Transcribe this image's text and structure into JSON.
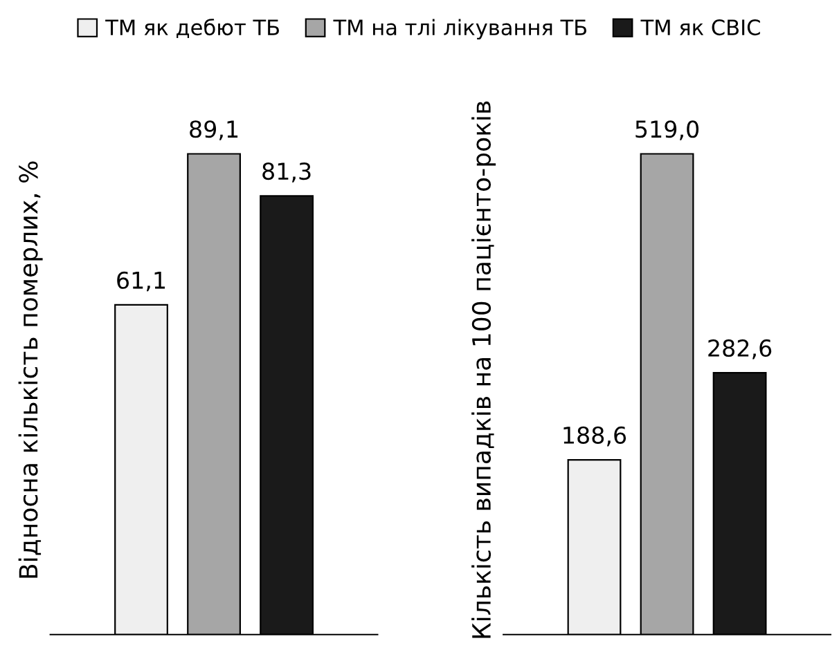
{
  "chart_data": [
    {
      "type": "bar",
      "ylabel": "Відносна кількість померлих, %",
      "categories": [
        null
      ],
      "data_labels": true,
      "legend": "top",
      "grid": false,
      "series": [
        {
          "name": "ТМ як дебют ТБ",
          "color": "#efefef",
          "values": [
            61.1
          ],
          "value_labels": [
            "61,1"
          ]
        },
        {
          "name": "ТМ на тлі лікування ТБ",
          "color": "#a6a6a6",
          "values": [
            89.1
          ],
          "value_labels": [
            "89,1"
          ]
        },
        {
          "name": "ТМ як СВІС",
          "color": "#1a1a1a",
          "values": [
            81.3
          ],
          "value_labels": [
            "81,3"
          ]
        }
      ]
    },
    {
      "type": "bar",
      "ylabel": "Кількість випадків на 100 пацієнто-років",
      "categories": [
        null
      ],
      "data_labels": true,
      "grid": false,
      "series": [
        {
          "color": "#efefef",
          "values": [
            188.6
          ],
          "value_labels": [
            "188,6"
          ]
        },
        {
          "color": "#a6a6a6",
          "values": [
            519.0
          ],
          "value_labels": [
            "519,0"
          ]
        },
        {
          "color": "#1a1a1a",
          "values": [
            282.6
          ],
          "value_labels": [
            "282,6"
          ]
        }
      ]
    }
  ]
}
